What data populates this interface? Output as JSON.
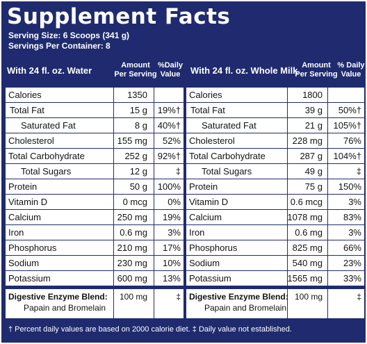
{
  "title": "Supplement Facts",
  "serving_size": "Serving Size: 6 Scoops (341 g)",
  "servings_per_container": "Servings Per Container: 8",
  "columns": [
    {
      "label": "With 24 fl. oz. Water",
      "amount_header": "Amount\nPer Serving",
      "dv_header": "%Daily\nValue",
      "rows": [
        {
          "name": "Calories",
          "amount": "1350",
          "dv": "",
          "indent": 0
        },
        {
          "name": "Total Fat",
          "amount": "15 g",
          "dv": "19%†",
          "indent": 1
        },
        {
          "name": "Saturated Fat",
          "amount": "8 g",
          "dv": "40%†",
          "indent": 2
        },
        {
          "name": "Cholesterol",
          "amount": "155 mg",
          "dv": "52%",
          "indent": 0
        },
        {
          "name": "Total Carbohydrate",
          "amount": "252 g",
          "dv": "92%†",
          "indent": 0
        },
        {
          "name": "Total Sugars",
          "amount": "12 g",
          "dv": "‡",
          "indent": 2
        },
        {
          "name": "Protein",
          "amount": "50 g",
          "dv": "100%",
          "indent": 0
        },
        {
          "name": "Vitamin D",
          "amount": "0 mcg",
          "dv": "0%",
          "indent": 0
        },
        {
          "name": "Calcium",
          "amount": "250 mg",
          "dv": "19%",
          "indent": 0
        },
        {
          "name": "Iron",
          "amount": "0.6 mg",
          "dv": "3%",
          "indent": 0
        },
        {
          "name": "Phosphorus",
          "amount": "210 mg",
          "dv": "17%",
          "indent": 0
        },
        {
          "name": "Sodium",
          "amount": "230 mg",
          "dv": "10%",
          "indent": 0
        },
        {
          "name": "Potassium",
          "amount": "600 mg",
          "dv": "13%",
          "indent": 0
        }
      ],
      "enzyme": {
        "name": "Digestive Enzyme Blend:",
        "sub": "Papain and Bromelain",
        "amount": "100 mg",
        "dv": "‡"
      }
    },
    {
      "label": "With 24 fl. oz. Whole Milk",
      "amount_header": "Amount\nPer Serving",
      "dv_header": "% Daily\nValue",
      "rows": [
        {
          "name": "Calories",
          "amount": "1800",
          "dv": "",
          "indent": 0
        },
        {
          "name": "Total Fat",
          "amount": "39 g",
          "dv": "50%†",
          "indent": 1
        },
        {
          "name": "Saturated Fat",
          "amount": "21 g",
          "dv": "105%†",
          "indent": 2
        },
        {
          "name": "Cholesterol",
          "amount": "228 mg",
          "dv": "76%",
          "indent": 0
        },
        {
          "name": "Total Carbohydrate",
          "amount": "287 g",
          "dv": "104%†",
          "indent": 0
        },
        {
          "name": "Total Sugars",
          "amount": "49 g",
          "dv": "‡",
          "indent": 2
        },
        {
          "name": "Protein",
          "amount": "75 g",
          "dv": "150%",
          "indent": 0
        },
        {
          "name": "Vitamin D",
          "amount": "0.6 mcg",
          "dv": "3%",
          "indent": 0
        },
        {
          "name": "Calcium",
          "amount": "1078 mg",
          "dv": "83%",
          "indent": 0
        },
        {
          "name": "Iron",
          "amount": "0.6 mg",
          "dv": "3%",
          "indent": 0
        },
        {
          "name": "Phosphorus",
          "amount": "825 mg",
          "dv": "66%",
          "indent": 0
        },
        {
          "name": "Sodium",
          "amount": "540 mg",
          "dv": "23%",
          "indent": 0
        },
        {
          "name": "Potassium",
          "amount": "1565 mg",
          "dv": "33%",
          "indent": 0
        }
      ],
      "enzyme": {
        "name": "Digestive Enzyme Blend:",
        "sub": "Papain and Bromelain",
        "amount": "100 mg",
        "dv": "‡"
      }
    }
  ],
  "footnote": "† Percent daily values are based on 2000 calorie diet.  ‡ Daily value not established.",
  "colors": {
    "background": "#1f2b6e",
    "table": "#ffffff",
    "text": "#111111"
  }
}
